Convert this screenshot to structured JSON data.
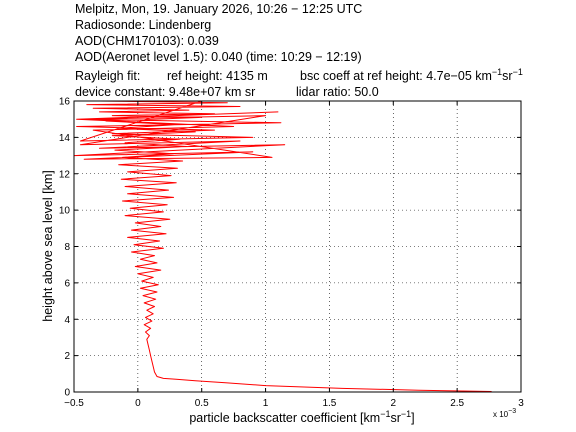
{
  "header": {
    "line1": "Melpitz, Mon, 19. January 2026, 10:26 − 12:25 UTC",
    "line2": "Radiosonde: Lindenberg",
    "line3": "AOD(CHM170103): 0.039",
    "line4": "AOD(Aeronet level 1.5): 0.040   (time: 10:29 − 12:19)",
    "rayleigh_label": "Rayleigh fit:",
    "ref_height": "ref height: 4135 m",
    "bsc_coeff_prefix": "bsc coeff at ref height: 4.7e−05 km",
    "bsc_coeff_exp1": "−1",
    "bsc_coeff_mid": "sr",
    "bsc_coeff_exp2": "−1",
    "device_constant": "device constant: 9.48e+07 km sr",
    "lidar_ratio": "lidar ratio: 50.0"
  },
  "chart_data": {
    "type": "line",
    "xlabel_prefix": "particle backscatter coefficient [km",
    "xlabel_exp1": "−1",
    "xlabel_mid": "sr",
    "xlabel_exp2": "−1",
    "xlabel_suffix": "]",
    "ylabel": "height above sea level [km]",
    "x_multiplier_prefix": "x 10",
    "x_multiplier_exp": "−3",
    "xlim": [
      -0.5,
      3
    ],
    "ylim": [
      0,
      16
    ],
    "xticks": [
      -0.5,
      0,
      0.5,
      1,
      1.5,
      2,
      2.5,
      3
    ],
    "xtick_labels": [
      "−0.5",
      "0",
      "0.5",
      "1",
      "1.5",
      "2",
      "2.5",
      "3"
    ],
    "yticks": [
      0,
      2,
      4,
      6,
      8,
      10,
      12,
      14,
      16
    ],
    "ytick_labels": [
      "0",
      "2",
      "4",
      "6",
      "8",
      "10",
      "12",
      "14",
      "16"
    ],
    "grid": true,
    "line_color": "#ff0000",
    "series": [
      {
        "x": [
          2.77,
          2.2,
          1.6,
          1.0,
          0.7,
          0.45,
          0.3,
          0.2,
          0.15,
          0.13,
          0.12,
          0.11,
          0.1,
          0.09,
          0.08,
          0.07,
          0.09,
          0.06,
          0.1,
          0.05,
          0.11,
          0.06,
          0.12,
          0.07,
          0.13,
          0.05,
          0.14,
          0.04,
          0.15,
          0.02,
          0.16,
          0.03,
          0.12,
          0.0,
          0.18,
          -0.02,
          0.15,
          0.02,
          0.13,
          -0.05,
          0.2,
          -0.03,
          0.17,
          -0.08,
          0.22,
          -0.05,
          0.18,
          -0.02,
          0.25,
          -0.1,
          0.2,
          -0.06,
          0.23,
          -0.12,
          0.28,
          -0.08,
          0.24,
          -0.1,
          0.3,
          -0.13,
          0.26,
          -0.08,
          0.31,
          -0.15,
          0.35,
          -0.12,
          0.28,
          -0.18,
          0.38,
          -0.1,
          0.33,
          -0.2,
          0.45,
          -0.15,
          0.3,
          -0.25,
          0.5,
          -0.2,
          0.6,
          -0.3,
          0.4,
          -0.35,
          0.8,
          -0.4,
          0.7,
          -0.3,
          0.5,
          -0.45,
          0.9,
          -0.2,
          0.6,
          -0.48,
          1.12,
          -0.4,
          1.0,
          -0.45,
          0.8,
          -0.3,
          1.15,
          -0.5,
          0.9,
          -0.42,
          1.05,
          -0.35,
          0.75,
          -0.48,
          1.1
        ],
        "y": [
          0.03,
          0.1,
          0.2,
          0.35,
          0.5,
          0.62,
          0.7,
          0.75,
          0.85,
          1.1,
          1.4,
          1.7,
          2.0,
          2.3,
          2.6,
          2.9,
          3.1,
          3.3,
          3.5,
          3.7,
          3.9,
          4.1,
          4.3,
          4.5,
          4.7,
          4.9,
          5.1,
          5.3,
          5.5,
          5.7,
          5.9,
          6.1,
          6.3,
          6.5,
          6.7,
          6.9,
          7.1,
          7.3,
          7.5,
          7.7,
          7.9,
          8.1,
          8.3,
          8.5,
          8.7,
          8.9,
          9.1,
          9.3,
          9.5,
          9.7,
          9.9,
          10.1,
          10.3,
          10.5,
          10.7,
          10.9,
          11.1,
          11.3,
          11.5,
          11.7,
          11.9,
          12.1,
          12.3,
          12.5,
          12.7,
          12.9,
          13.1,
          13.3,
          13.5,
          13.7,
          13.9,
          14.1,
          14.3,
          14.5,
          14.7,
          14.9,
          15.1,
          15.2,
          15.3,
          15.4,
          15.5,
          15.6,
          15.7,
          15.8,
          15.9,
          16.0,
          16.0,
          13.8,
          14.0,
          14.2,
          14.4,
          14.6,
          14.8,
          15.0,
          15.2,
          13.6,
          13.8,
          13.4,
          13.6,
          13.0,
          13.2,
          12.8,
          12.9,
          14.4,
          14.6,
          15.0,
          15.4
        ]
      }
    ]
  }
}
